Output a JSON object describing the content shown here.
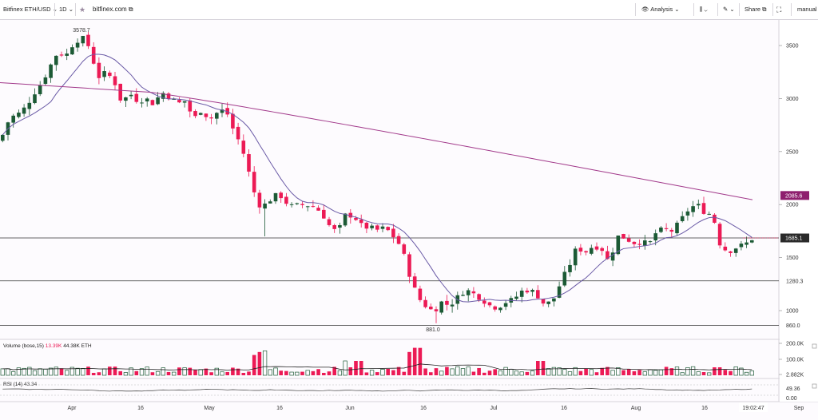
{
  "toolbar": {
    "symbol": "Bitfinex ETH/USD",
    "interval": "1D",
    "site": "bitfinex.com",
    "analysis_label": "Analysis",
    "share_label": "Share",
    "mode": "manual"
  },
  "price_axis": {
    "ticks": [
      "3500",
      "3000",
      "2500",
      "2000",
      "1500",
      "1000"
    ],
    "labels": {
      "ma_long": "2085.6",
      "last": "1685.1",
      "level_mid": "1280.3",
      "level_low": "860.0"
    }
  },
  "volume_axis": {
    "ticks": [
      "200.0K",
      "100.0K",
      "2.882K"
    ]
  },
  "rsi_axis": {
    "ticks": [
      "49.36",
      "0.00"
    ]
  },
  "annotations": {
    "high": "3578.7",
    "low": "881.0"
  },
  "time_axis": {
    "labels": [
      "Apr",
      "16",
      "May",
      "16",
      "Jun",
      "16",
      "Jul",
      "16",
      "Aug",
      "16",
      "Sep"
    ],
    "clock": "19:02:47"
  },
  "legends": {
    "volume_name": "Volume (bose,15)",
    "volume_v1": "13.39K",
    "volume_v2": "44.38K",
    "volume_unit": "ETH",
    "rsi_name": "RSI (14)",
    "rsi_value": "43.34"
  },
  "colors": {
    "up": "#1c5a35",
    "down": "#ec1a55",
    "ma_short": "#6a5aa6",
    "ma_long": "#a23a8b",
    "rsi_line": "#555555",
    "badge_ma": "#8e1f6e",
    "badge_last": "#2a2a2a"
  }
}
